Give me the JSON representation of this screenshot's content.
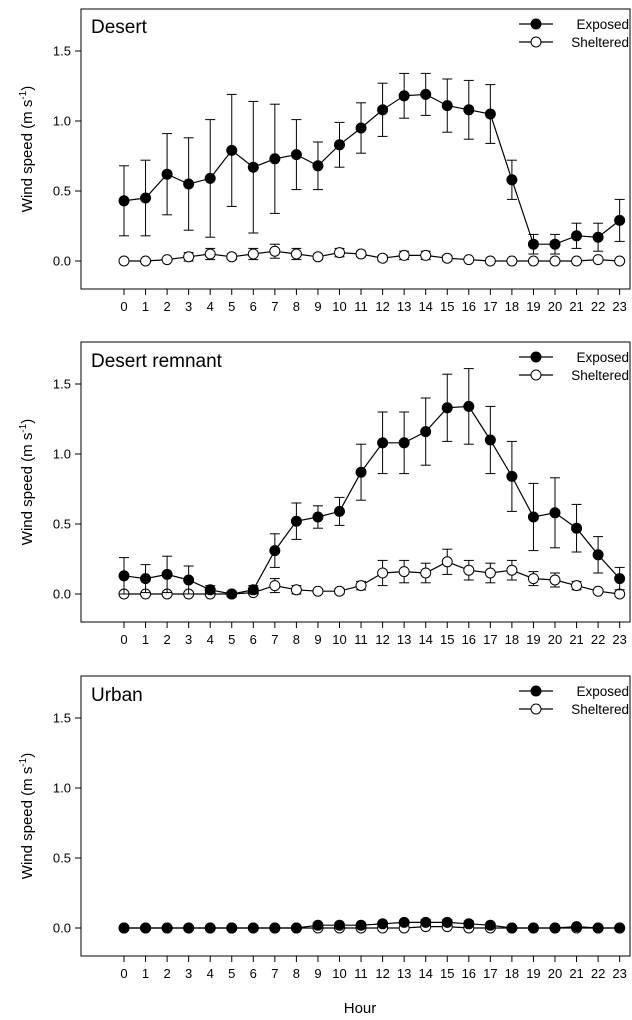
{
  "xlabel": "Hour",
  "colors": {
    "exposed_fill": "#000000",
    "sheltered_fill": "#ffffff",
    "line": "#000000"
  },
  "chart_data": [
    {
      "type": "line",
      "title": "Desert",
      "ylabel": "Wind speed (m s-1)",
      "ylabel_parts": {
        "main": "Wind speed (m s",
        "sup": "-1",
        "close": ")"
      },
      "ylim": [
        -0.2,
        1.8
      ],
      "yticks": [
        "0.0",
        "0.5",
        "1.0",
        "1.5"
      ],
      "x": [
        0,
        1,
        2,
        3,
        4,
        5,
        6,
        7,
        8,
        9,
        10,
        11,
        12,
        13,
        14,
        15,
        16,
        17,
        18,
        19,
        20,
        21,
        22,
        23
      ],
      "legend_position": "top-right",
      "series": [
        {
          "name": "Exposed",
          "marker": "filled-circle",
          "values": [
            0.43,
            0.45,
            0.62,
            0.55,
            0.59,
            0.79,
            0.67,
            0.73,
            0.76,
            0.68,
            0.83,
            0.95,
            1.08,
            1.18,
            1.19,
            1.11,
            1.08,
            1.05,
            0.58,
            0.12,
            0.12,
            0.18,
            0.17,
            0.29
          ],
          "errors": [
            0.25,
            0.27,
            0.29,
            0.33,
            0.42,
            0.4,
            0.47,
            0.39,
            0.25,
            0.17,
            0.16,
            0.18,
            0.19,
            0.16,
            0.15,
            0.19,
            0.21,
            0.21,
            0.14,
            0.07,
            0.07,
            0.09,
            0.1,
            0.15
          ]
        },
        {
          "name": "Sheltered",
          "marker": "open-circle",
          "values": [
            0.0,
            0.0,
            0.01,
            0.03,
            0.05,
            0.03,
            0.05,
            0.07,
            0.05,
            0.03,
            0.06,
            0.05,
            0.02,
            0.04,
            0.04,
            0.02,
            0.01,
            0.0,
            0.0,
            0.0,
            0.0,
            0.0,
            0.01,
            0.0
          ],
          "errors": [
            0.01,
            0.01,
            0.01,
            0.03,
            0.04,
            0.02,
            0.04,
            0.05,
            0.04,
            0.02,
            0.03,
            0.02,
            0.02,
            0.03,
            0.03,
            0.02,
            0.01,
            0.01,
            0.01,
            0.01,
            0.01,
            0.01,
            0.01,
            0.01
          ]
        }
      ]
    },
    {
      "type": "line",
      "title": "Desert remnant",
      "ylabel": "Wind speed (m s-1)",
      "ylabel_parts": {
        "main": "Wind speed (m s",
        "sup": "-1",
        "close": ")"
      },
      "ylim": [
        -0.2,
        1.8
      ],
      "yticks": [
        "0.0",
        "0.5",
        "1.0",
        "1.5"
      ],
      "x": [
        0,
        1,
        2,
        3,
        4,
        5,
        6,
        7,
        8,
        9,
        10,
        11,
        12,
        13,
        14,
        15,
        16,
        17,
        18,
        19,
        20,
        21,
        22,
        23
      ],
      "legend_position": "top-right",
      "series": [
        {
          "name": "Exposed",
          "marker": "filled-circle",
          "values": [
            0.13,
            0.11,
            0.14,
            0.1,
            0.03,
            0.0,
            0.03,
            0.31,
            0.52,
            0.55,
            0.59,
            0.87,
            1.08,
            1.08,
            1.16,
            1.33,
            1.34,
            1.1,
            0.84,
            0.55,
            0.58,
            0.47,
            0.28,
            0.11
          ],
          "errors": [
            0.13,
            0.1,
            0.13,
            0.1,
            0.03,
            0.02,
            0.03,
            0.12,
            0.13,
            0.08,
            0.1,
            0.2,
            0.22,
            0.22,
            0.24,
            0.24,
            0.27,
            0.24,
            0.25,
            0.24,
            0.25,
            0.17,
            0.13,
            0.08
          ]
        },
        {
          "name": "Sheltered",
          "marker": "open-circle",
          "values": [
            0.0,
            0.0,
            0.0,
            0.0,
            0.0,
            0.0,
            0.01,
            0.06,
            0.03,
            0.02,
            0.02,
            0.06,
            0.15,
            0.16,
            0.15,
            0.23,
            0.17,
            0.15,
            0.17,
            0.11,
            0.1,
            0.06,
            0.02,
            0.0
          ],
          "errors": [
            0.01,
            0.01,
            0.01,
            0.01,
            0.01,
            0.01,
            0.01,
            0.05,
            0.03,
            0.01,
            0.02,
            0.03,
            0.09,
            0.08,
            0.07,
            0.09,
            0.07,
            0.07,
            0.07,
            0.05,
            0.05,
            0.03,
            0.01,
            0.01
          ]
        }
      ]
    },
    {
      "type": "line",
      "title": "Urban",
      "ylabel": "Wind speed (m s-1)",
      "ylabel_parts": {
        "main": "Wind speed (m s",
        "sup": "-1",
        "close": ")"
      },
      "ylim": [
        -0.2,
        1.8
      ],
      "yticks": [
        "0.0",
        "0.5",
        "1.0",
        "1.5"
      ],
      "x": [
        0,
        1,
        2,
        3,
        4,
        5,
        6,
        7,
        8,
        9,
        10,
        11,
        12,
        13,
        14,
        15,
        16,
        17,
        18,
        19,
        20,
        21,
        22,
        23
      ],
      "legend_position": "top-right",
      "series": [
        {
          "name": "Exposed",
          "marker": "filled-circle",
          "values": [
            0.0,
            0.0,
            0.0,
            0.0,
            0.0,
            0.0,
            0.0,
            0.0,
            0.0,
            0.02,
            0.02,
            0.02,
            0.03,
            0.04,
            0.04,
            0.04,
            0.03,
            0.02,
            0.0,
            0.0,
            0.0,
            0.01,
            0.0,
            0.0
          ],
          "errors": [
            0.0,
            0.0,
            0.0,
            0.0,
            0.0,
            0.0,
            0.0,
            0.0,
            0.0,
            0.01,
            0.01,
            0.01,
            0.01,
            0.01,
            0.02,
            0.02,
            0.02,
            0.01,
            0.0,
            0.0,
            0.0,
            0.01,
            0.0,
            0.0
          ]
        },
        {
          "name": "Sheltered",
          "marker": "open-circle",
          "values": [
            0.0,
            0.0,
            0.0,
            0.0,
            0.0,
            0.0,
            0.0,
            0.0,
            0.0,
            0.0,
            0.0,
            0.0,
            0.0,
            0.0,
            0.01,
            0.01,
            0.0,
            0.0,
            0.0,
            0.0,
            0.0,
            0.0,
            0.0,
            0.0
          ],
          "errors": [
            0.0,
            0.0,
            0.0,
            0.0,
            0.0,
            0.0,
            0.0,
            0.0,
            0.0,
            0.0,
            0.0,
            0.0,
            0.0,
            0.0,
            0.01,
            0.01,
            0.01,
            0.0,
            0.0,
            0.0,
            0.0,
            0.0,
            0.0,
            0.0
          ]
        }
      ]
    }
  ]
}
